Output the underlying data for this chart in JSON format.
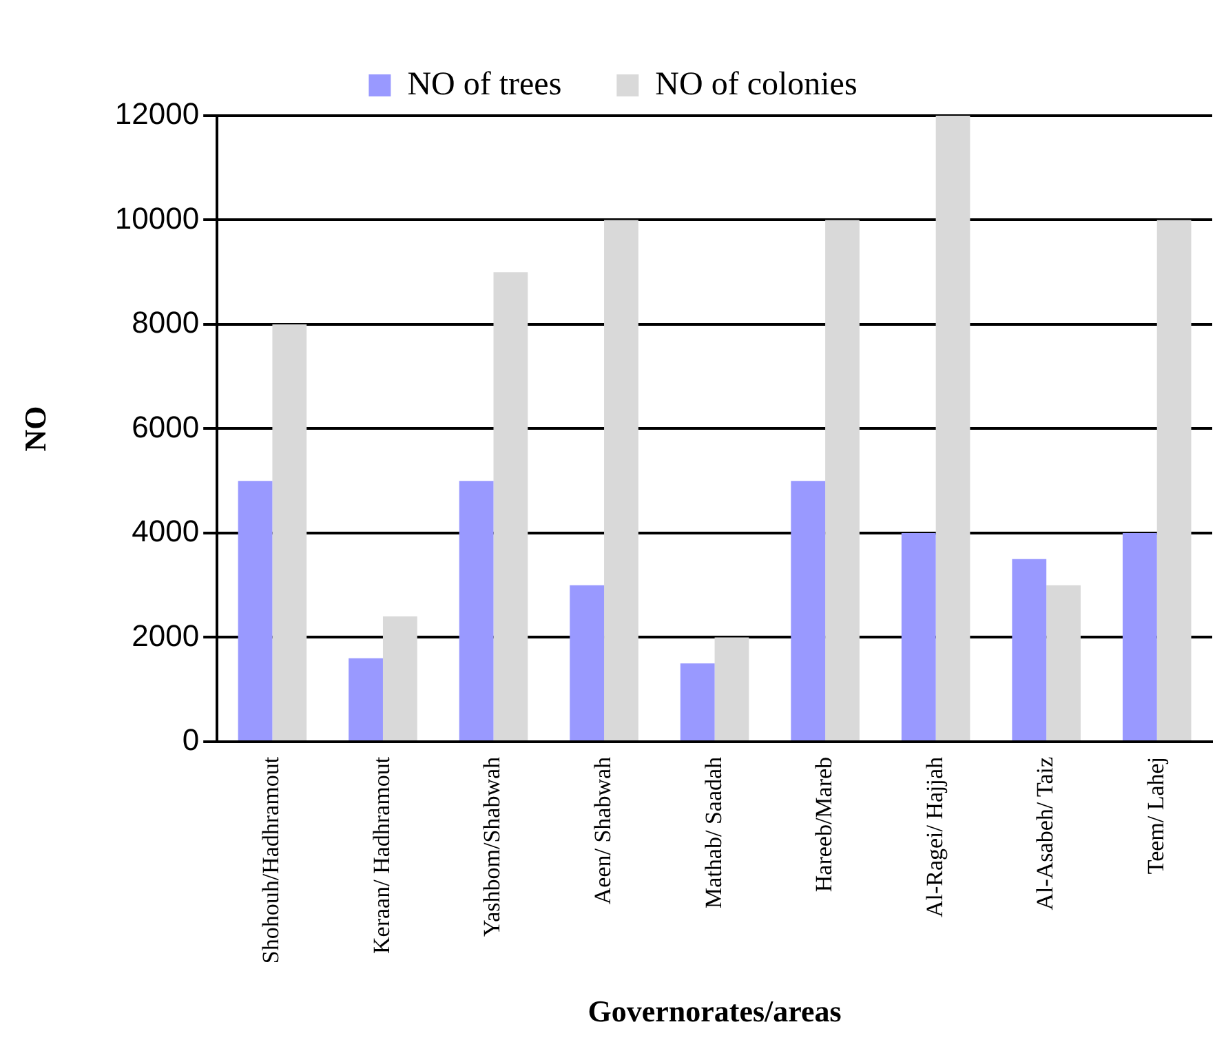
{
  "chart_data": {
    "type": "bar",
    "xlabel": "Governorates/areas",
    "ylabel": "NO",
    "categories": [
      "Shohouh/Hadhramout",
      "Keraan/ Hadhramout",
      "Yashbom/Shabwah",
      "Aeen/ Shabwah",
      "Mathab/ Saadah",
      "Hareeb/Mareb",
      "Al-Ragei/ Hajjah",
      "Al-Asabeh/ Taiz",
      "Teem/ Lahej"
    ],
    "series": [
      {
        "name": "NO of trees",
        "color": "#9999ff",
        "values": [
          5000,
          1600,
          5000,
          3000,
          1500,
          5000,
          4000,
          3500,
          4000
        ]
      },
      {
        "name": "NO of colonies",
        "color": "#d9d9d9",
        "values": [
          8000,
          2400,
          9000,
          10000,
          2000,
          10000,
          12000,
          3000,
          10000
        ]
      }
    ],
    "ylim": [
      0,
      12000
    ],
    "yticks": [
      0,
      2000,
      4000,
      6000,
      8000,
      10000,
      12000
    ],
    "grid": "y",
    "legend": "top"
  }
}
